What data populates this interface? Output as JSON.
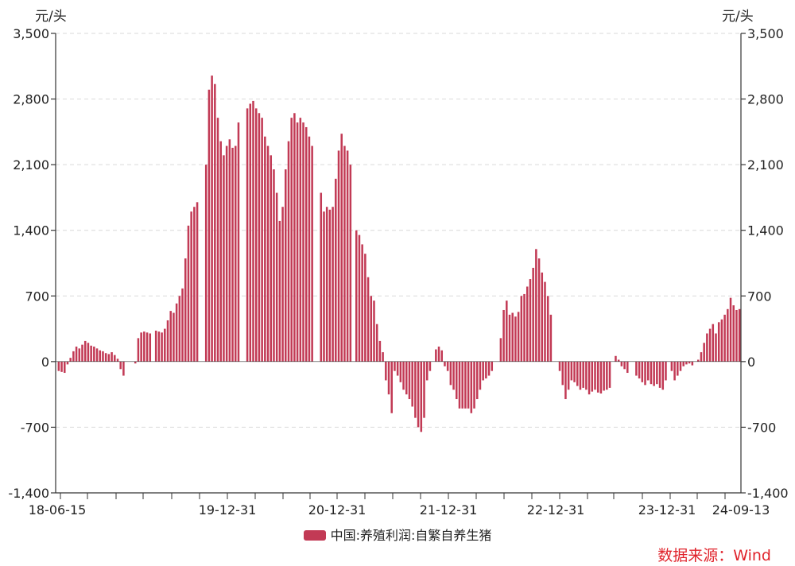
{
  "left_unit": "元/头",
  "right_unit": "元/头",
  "source": "数据来源：Wind",
  "colors": {
    "bar": "#C23A55",
    "axis": "#333333",
    "grid": "#D9D9D9",
    "source": "#E0232B"
  },
  "chart_data": {
    "type": "bar",
    "xlabel": "",
    "ylabel": "元/头",
    "ylim": [
      -1400,
      3500
    ],
    "yticks": [
      3500,
      2800,
      2100,
      1400,
      700,
      0,
      -700,
      -1400
    ],
    "ytick_labels": [
      "3,500",
      "2,800",
      "2,100",
      "1,400",
      "700",
      "0",
      "-700",
      "-1,400"
    ],
    "xticks": [
      "18-06-15",
      "19-12-31",
      "20-12-31",
      "21-12-31",
      "22-12-31",
      "23-12-31",
      "24-09-13"
    ],
    "grid": "horizontal dashed",
    "legend_position": "bottom",
    "series": [
      {
        "name": "中国:养殖利润:自繁自养生猪",
        "values": [
          -100,
          -110,
          -120,
          -30,
          40,
          110,
          160,
          140,
          180,
          220,
          200,
          170,
          160,
          140,
          120,
          110,
          90,
          80,
          100,
          70,
          30,
          -80,
          -150,
          0,
          0,
          0,
          -20,
          250,
          310,
          320,
          310,
          300,
          0,
          330,
          320,
          310,
          350,
          440,
          540,
          520,
          620,
          700,
          780,
          1100,
          1450,
          1600,
          1650,
          1700,
          0,
          0,
          2100,
          2900,
          3050,
          2960,
          2600,
          2350,
          2200,
          2300,
          2370,
          2280,
          2300,
          2550,
          0,
          0,
          2700,
          2750,
          2780,
          2700,
          2650,
          2600,
          2400,
          2300,
          2200,
          2050,
          1800,
          1500,
          1650,
          2050,
          2350,
          2600,
          2650,
          2550,
          2600,
          2550,
          2500,
          2400,
          2300,
          0,
          0,
          1800,
          1600,
          1650,
          1620,
          1650,
          1950,
          2250,
          2430,
          2300,
          2250,
          2100,
          0,
          1400,
          1350,
          1250,
          1150,
          900,
          700,
          650,
          400,
          220,
          100,
          -200,
          -350,
          -550,
          -100,
          -150,
          -220,
          -300,
          -350,
          -400,
          -480,
          -600,
          -700,
          -750,
          -600,
          -200,
          -100,
          0,
          130,
          160,
          120,
          -50,
          -100,
          -250,
          -300,
          -400,
          -500,
          -500,
          -500,
          -500,
          -550,
          -500,
          -400,
          -300,
          -200,
          -180,
          -150,
          -100,
          0,
          0,
          250,
          550,
          650,
          500,
          520,
          480,
          530,
          700,
          720,
          800,
          880,
          1000,
          1200,
          1100,
          950,
          850,
          700,
          500,
          0,
          0,
          -100,
          -250,
          -400,
          -300,
          -200,
          -220,
          -260,
          -300,
          -280,
          -300,
          -350,
          -320,
          -300,
          -330,
          -340,
          -310,
          -300,
          -280,
          0,
          60,
          20,
          -50,
          -80,
          -120,
          0,
          0,
          -150,
          -180,
          -220,
          -250,
          -200,
          -240,
          -260,
          -240,
          -280,
          -300,
          -200,
          0,
          -100,
          -200,
          -150,
          -100,
          -50,
          -30,
          -20,
          -40,
          0,
          20,
          100,
          200,
          300,
          350,
          400,
          300,
          420,
          450,
          500,
          560,
          680,
          600,
          550,
          560
        ]
      }
    ]
  }
}
